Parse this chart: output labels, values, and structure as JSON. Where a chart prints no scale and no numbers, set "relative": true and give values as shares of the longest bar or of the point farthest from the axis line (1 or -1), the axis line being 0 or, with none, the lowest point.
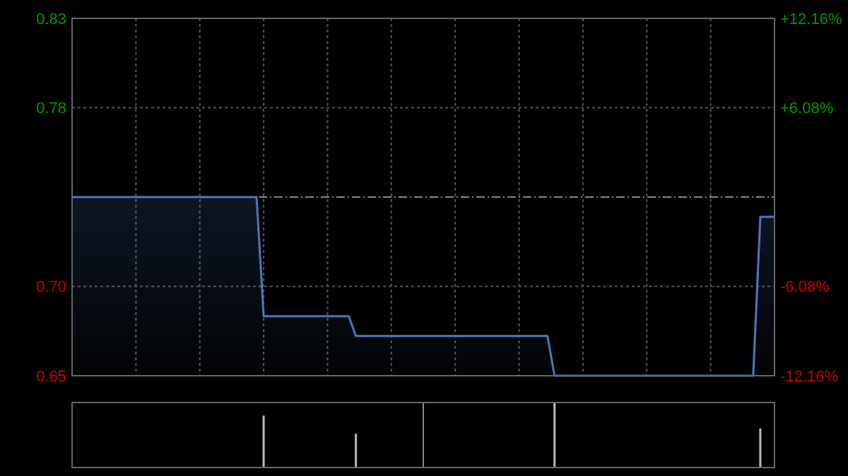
{
  "chart_data": [
    {
      "type": "area",
      "categories": [
        null,
        null,
        null,
        null,
        null,
        null,
        null,
        null,
        null,
        null,
        null,
        null,
        null,
        null,
        null,
        null,
        null,
        null,
        null,
        null,
        null,
        null,
        null,
        null,
        null,
        null,
        null,
        null,
        null,
        null,
        null,
        null,
        null,
        null,
        null,
        null,
        null,
        null,
        null,
        null,
        null,
        null,
        null,
        null,
        null,
        null,
        null,
        null,
        null,
        null,
        null,
        null,
        null,
        null,
        null,
        null,
        null,
        null,
        null,
        null,
        null,
        null,
        null,
        null,
        null,
        null,
        null,
        null,
        null,
        null,
        null,
        null,
        null,
        null,
        null,
        null,
        null,
        null,
        null,
        null,
        null,
        null,
        null,
        null,
        null,
        null,
        null,
        null,
        null,
        null,
        null,
        null,
        null,
        null,
        null,
        null,
        null,
        null,
        null,
        null
      ],
      "series": [
        {
          "color": "#4a78c0",
          "values": [
            0.74,
            0.74,
            0.74,
            0.74,
            0.74,
            0.74,
            0.74,
            0.74,
            0.74,
            0.74,
            0.74,
            0.74,
            0.74,
            0.74,
            0.74,
            0.74,
            0.74,
            0.74,
            0.74,
            0.74,
            0.74,
            0.74,
            0.74,
            0.74,
            0.74,
            0.74,
            0.74,
            0.68,
            0.68,
            0.68,
            0.68,
            0.68,
            0.68,
            0.68,
            0.68,
            0.68,
            0.68,
            0.68,
            0.68,
            0.68,
            0.67,
            0.67,
            0.67,
            0.67,
            0.67,
            0.67,
            0.67,
            0.67,
            0.67,
            0.67,
            0.67,
            0.67,
            0.67,
            0.67,
            0.67,
            0.67,
            0.67,
            0.67,
            0.67,
            0.67,
            0.67,
            0.67,
            0.67,
            0.67,
            0.67,
            0.67,
            0.67,
            0.67,
            0.65,
            0.65,
            0.65,
            0.65,
            0.65,
            0.65,
            0.65,
            0.65,
            0.65,
            0.65,
            0.65,
            0.65,
            0.65,
            0.65,
            0.65,
            0.65,
            0.65,
            0.65,
            0.65,
            0.65,
            0.65,
            0.65,
            0.65,
            0.65,
            0.65,
            0.65,
            0.65,
            0.65,
            0.65,
            0.73,
            0.73,
            0.73
          ]
        }
      ],
      "ylim": [
        0.65,
        0.83
      ],
      "yticks": [
        0.83,
        {
          "value": 0.785,
          "label": "0.78"
        },
        {
          "value": 0.695,
          "label": "0.70"
        },
        0.65
      ],
      "y2lim": [
        -12.16,
        12.16
      ],
      "y2ticks": [
        {
          "value": 12.16,
          "label": "+12.16%"
        },
        {
          "value": 6.08,
          "label": "+6.08%"
        },
        {
          "value": -6.08,
          "label": "-6.08%"
        },
        {
          "value": -12.16,
          "label": "-12.16%"
        }
      ],
      "ref_lines": [
        {
          "axis": "y",
          "value": 0.74,
          "line_style": "dashed"
        }
      ],
      "grid": true
    },
    {
      "type": "bar",
      "relative": true,
      "categories": [
        null,
        null,
        null,
        null,
        null,
        null,
        null,
        null,
        null,
        null,
        null,
        null,
        null,
        null,
        null,
        null,
        null,
        null,
        null,
        null,
        null,
        null,
        null,
        null,
        null,
        null,
        null,
        null,
        null,
        null,
        null,
        null,
        null,
        null,
        null,
        null,
        null,
        null,
        null,
        null,
        null,
        null,
        null,
        null,
        null,
        null,
        null,
        null,
        null,
        null,
        null,
        null,
        null,
        null,
        null,
        null,
        null,
        null,
        null,
        null,
        null,
        null,
        null,
        null,
        null,
        null,
        null,
        null,
        null,
        null,
        null,
        null,
        null,
        null,
        null,
        null,
        null,
        null,
        null,
        null,
        null,
        null,
        null,
        null,
        null,
        null,
        null,
        null,
        null,
        null,
        null,
        null,
        null,
        null,
        null,
        null,
        null,
        null,
        null,
        null
      ],
      "values": [
        null,
        null,
        null,
        null,
        null,
        null,
        null,
        null,
        null,
        null,
        null,
        null,
        null,
        null,
        null,
        null,
        null,
        null,
        null,
        null,
        null,
        null,
        null,
        null,
        null,
        null,
        null,
        0.8,
        null,
        null,
        null,
        null,
        null,
        null,
        null,
        null,
        null,
        null,
        null,
        null,
        0.52,
        null,
        null,
        null,
        null,
        null,
        null,
        null,
        null,
        null,
        null,
        null,
        null,
        null,
        null,
        null,
        null,
        null,
        null,
        null,
        null,
        null,
        null,
        null,
        null,
        null,
        null,
        null,
        1,
        null,
        null,
        null,
        null,
        null,
        null,
        null,
        null,
        null,
        null,
        null,
        null,
        null,
        null,
        null,
        null,
        null,
        null,
        null,
        null,
        null,
        null,
        null,
        null,
        null,
        null,
        null,
        null,
        0.6,
        null,
        null
      ],
      "color": "#bbbbbb"
    }
  ]
}
